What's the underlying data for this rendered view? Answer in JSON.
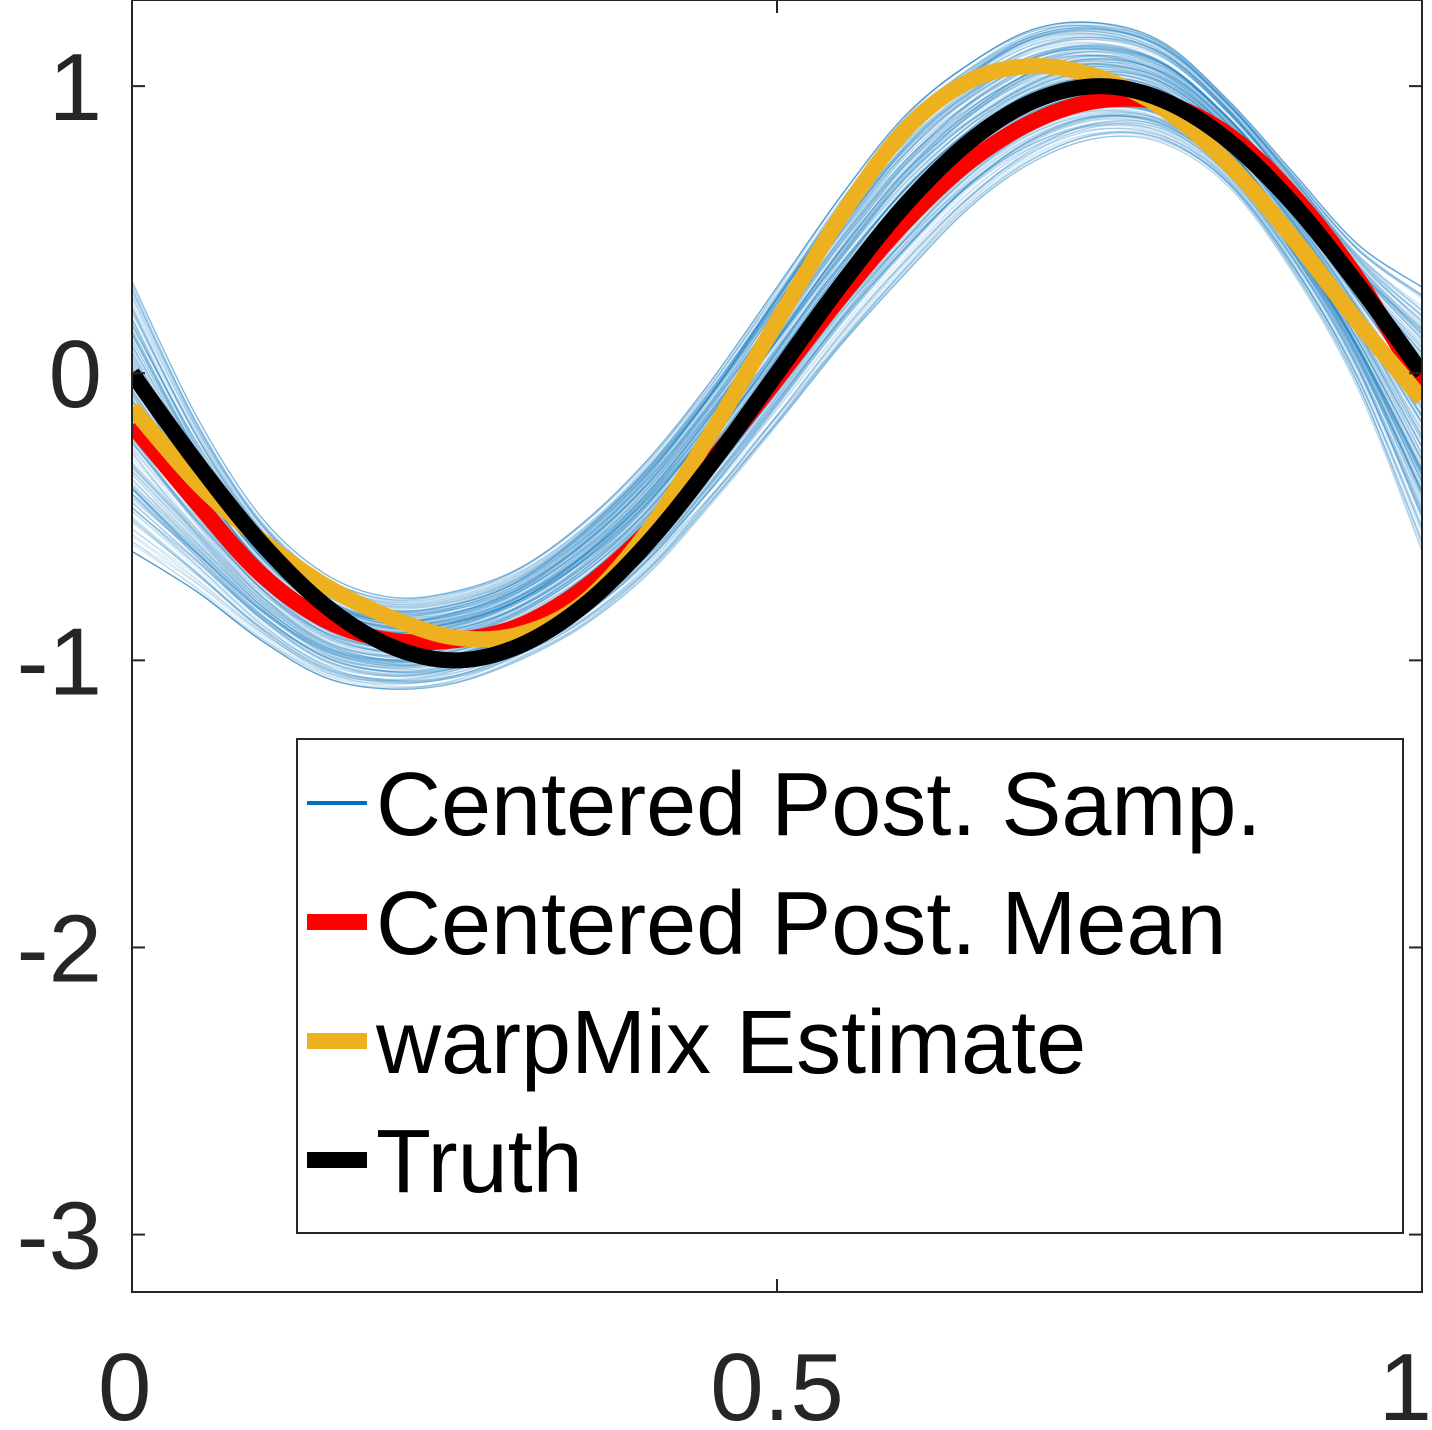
{
  "chart_data": {
    "type": "line",
    "title": "",
    "xlabel": "",
    "ylabel": "",
    "xlim": [
      0,
      1
    ],
    "ylim": [
      -3.2,
      1.3
    ],
    "xticks": [
      0,
      0.5,
      1
    ],
    "xtick_labels": [
      "0",
      "0.5",
      "1"
    ],
    "yticks": [
      -3,
      -2,
      -1,
      0,
      1
    ],
    "ytick_labels": [
      "-3",
      "-2",
      "-1",
      "0",
      "1"
    ],
    "grid": false,
    "box": true,
    "legend_position": "bottom-right",
    "samples_band": {
      "name": "Centered Post. Samp.",
      "color": "#0072BD",
      "count": 220,
      "x": [
        0.0,
        0.05,
        0.1,
        0.15,
        0.2,
        0.25,
        0.3,
        0.35,
        0.4,
        0.45,
        0.5,
        0.55,
        0.6,
        0.65,
        0.7,
        0.75,
        0.8,
        0.85,
        0.9,
        0.95,
        1.0
      ],
      "lower": [
        -0.62,
        -0.76,
        -0.93,
        -1.06,
        -1.1,
        -1.08,
        -1.0,
        -0.88,
        -0.7,
        -0.45,
        -0.18,
        0.1,
        0.35,
        0.58,
        0.74,
        0.82,
        0.8,
        0.65,
        0.35,
        -0.05,
        -0.62
      ],
      "upper": [
        0.32,
        -0.15,
        -0.5,
        -0.7,
        -0.78,
        -0.76,
        -0.68,
        -0.52,
        -0.3,
        -0.02,
        0.3,
        0.62,
        0.9,
        1.08,
        1.2,
        1.22,
        1.15,
        0.95,
        0.7,
        0.45,
        0.3
      ]
    },
    "series": [
      {
        "name": "Centered Post. Mean",
        "color": "#FF0000",
        "x": [
          0.0,
          0.05,
          0.1,
          0.15,
          0.2,
          0.25,
          0.3,
          0.35,
          0.4,
          0.45,
          0.5,
          0.55,
          0.6,
          0.65,
          0.7,
          0.75,
          0.8,
          0.85,
          0.9,
          0.95,
          1.0
        ],
        "y": [
          -0.18,
          -0.45,
          -0.7,
          -0.86,
          -0.93,
          -0.93,
          -0.88,
          -0.75,
          -0.55,
          -0.3,
          -0.02,
          0.27,
          0.53,
          0.74,
          0.88,
          0.95,
          0.94,
          0.83,
          0.62,
          0.33,
          -0.05
        ]
      },
      {
        "name": "warpMix Estimate",
        "color": "#EDB120",
        "x": [
          0.0,
          0.05,
          0.1,
          0.15,
          0.2,
          0.25,
          0.3,
          0.35,
          0.4,
          0.45,
          0.5,
          0.55,
          0.6,
          0.65,
          0.7,
          0.75,
          0.8,
          0.85,
          0.9,
          0.95,
          1.0
        ],
        "y": [
          -0.12,
          -0.38,
          -0.58,
          -0.74,
          -0.85,
          -0.92,
          -0.91,
          -0.8,
          -0.55,
          -0.2,
          0.18,
          0.55,
          0.85,
          1.02,
          1.07,
          1.03,
          0.92,
          0.73,
          0.47,
          0.18,
          -0.09
        ]
      },
      {
        "name": "Truth",
        "color": "#000000",
        "x": [
          0.0,
          0.05,
          0.1,
          0.15,
          0.2,
          0.25,
          0.3,
          0.35,
          0.4,
          0.45,
          0.5,
          0.55,
          0.6,
          0.65,
          0.7,
          0.75,
          0.8,
          0.85,
          0.9,
          0.95,
          1.0
        ],
        "y": [
          0.0,
          -0.31,
          -0.59,
          -0.81,
          -0.95,
          -1.0,
          -0.95,
          -0.81,
          -0.59,
          -0.31,
          0.0,
          0.31,
          0.59,
          0.81,
          0.95,
          1.0,
          0.95,
          0.81,
          0.59,
          0.31,
          0.0
        ]
      }
    ],
    "legend": [
      {
        "label": "Centered Post. Samp.",
        "color": "#0072BD",
        "style": "thin"
      },
      {
        "label": "Centered Post. Mean",
        "color": "#FF0000",
        "style": "thick"
      },
      {
        "label": "warpMix Estimate",
        "color": "#EDB120",
        "style": "thick"
      },
      {
        "label": "Truth",
        "color": "#000000",
        "style": "thick"
      }
    ]
  }
}
